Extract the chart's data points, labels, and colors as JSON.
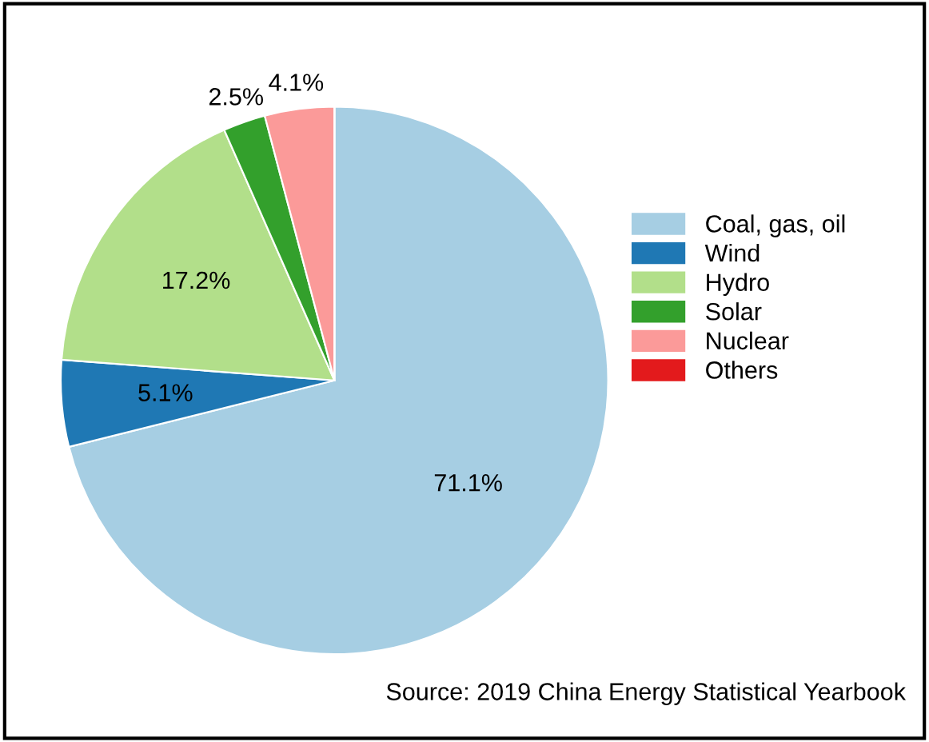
{
  "chart_data": {
    "type": "pie",
    "categories": [
      "Coal, gas, oil",
      "Wind",
      "Hydro",
      "Solar",
      "Nuclear",
      "Others"
    ],
    "values": [
      71.1,
      5.1,
      17.2,
      2.5,
      4.1,
      0
    ],
    "colors": [
      "#a6cee3",
      "#1f78b4",
      "#b2df8a",
      "#33a02c",
      "#fb9a99",
      "#e31a1c"
    ],
    "value_labels": [
      "71.1%",
      "5.1%",
      "17.2%",
      "2.5%",
      "4.1%",
      null
    ],
    "legend": "right",
    "annotations": [
      "Source: 2019 China Energy Statistical Yearbook"
    ]
  }
}
